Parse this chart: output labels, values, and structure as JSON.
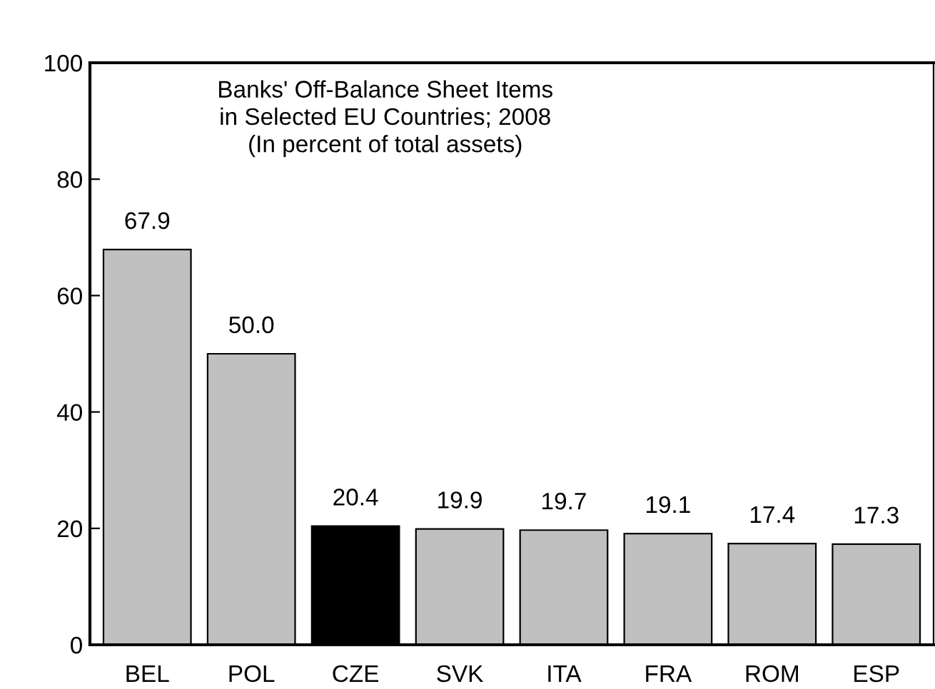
{
  "chart_data": {
    "type": "bar",
    "title": "Banks' Off-Balance Sheet Items\nin Selected EU Countries; 2008\n(In percent of total assets)",
    "categories": [
      "BEL",
      "POL",
      "CZE",
      "SVK",
      "ITA",
      "FRA",
      "ROM",
      "ESP"
    ],
    "values": [
      67.9,
      50.0,
      20.4,
      19.9,
      19.7,
      19.1,
      17.4,
      17.3
    ],
    "colors": [
      "#c0c0c0",
      "#c0c0c0",
      "#000000",
      "#c0c0c0",
      "#c0c0c0",
      "#c0c0c0",
      "#c0c0c0",
      "#c0c0c0"
    ],
    "value_labels": [
      "67.9",
      "50.0",
      "20.4",
      "19.9",
      "19.7",
      "19.1",
      "17.4",
      "17.3"
    ],
    "ylim": [
      0,
      100
    ],
    "yticks": [
      0,
      20,
      40,
      60,
      80,
      100
    ],
    "grid": false
  }
}
